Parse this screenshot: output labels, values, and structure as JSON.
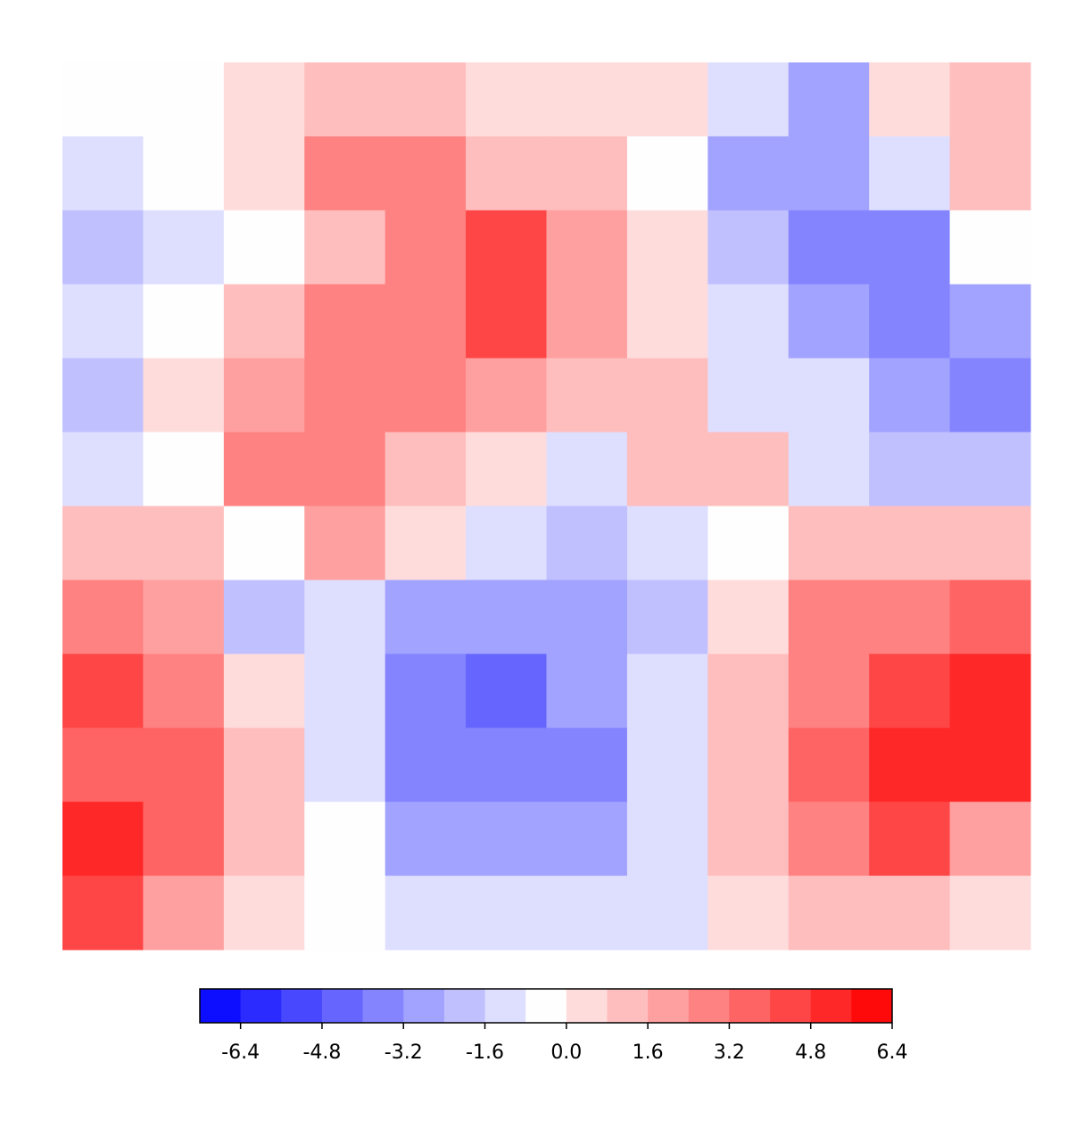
{
  "chart_data": {
    "type": "contourf",
    "colormap": "bwr",
    "levels": [
      -7.2,
      -6.4,
      -5.6,
      -4.8,
      -4.0,
      -3.2,
      -2.4,
      -1.6,
      -0.8,
      0,
      0.8,
      1.6,
      2.4,
      3.2,
      4.0,
      4.8,
      5.6,
      6.4
    ],
    "colors": [
      "#0d0dff",
      "#2b2bff",
      "#4848ff",
      "#6666ff",
      "#8484ff",
      "#a2a2ff",
      "#c0c0ff",
      "#dedeff",
      "#fefefe",
      "#ffdcdc",
      "#ffbebe",
      "#ffa0a0",
      "#ff8282",
      "#ff6464",
      "#ff4646",
      "#ff2828",
      "#ff0a0a"
    ],
    "z": [
      [
        -0.5,
        -0.5,
        0.5,
        1.5,
        1.0,
        0.5,
        0.5,
        0.3,
        -1.5,
        -2.5,
        0.5,
        0.8
      ],
      [
        -1.5,
        -0.8,
        0.5,
        2.5,
        2.5,
        1.5,
        1.2,
        -0.5,
        -2.5,
        -3.0,
        -1.0,
        1.0
      ],
      [
        -2.0,
        -1.0,
        -0.5,
        1.5,
        3.0,
        4.0,
        2.0,
        0.5,
        -2.0,
        -3.5,
        -3.5,
        -0.5
      ],
      [
        -1.5,
        -0.3,
        1.0,
        2.5,
        2.5,
        4.5,
        2.0,
        0.5,
        -1.5,
        -2.5,
        -3.5,
        -3.0
      ],
      [
        -2.0,
        0.5,
        2.0,
        2.5,
        3.0,
        2.0,
        1.0,
        1.5,
        -1.0,
        -1.5,
        -3.0,
        -3.5
      ],
      [
        -1.0,
        -0.5,
        2.5,
        3.0,
        1.0,
        0,
        -1.0,
        1.5,
        1.0,
        -1.0,
        -2.0,
        -2.0
      ],
      [
        1.5,
        1.0,
        -0.5,
        2.0,
        0,
        -1.5,
        -2.0,
        -1.0,
        -0.5,
        1.5,
        1.5,
        1.0
      ],
      [
        3.0,
        2.0,
        -2.0,
        -1.5,
        -2.5,
        -2.5,
        -2.5,
        -2.0,
        0,
        2.5,
        3.0,
        3.5
      ],
      [
        4.0,
        3.0,
        0.5,
        -1.5,
        -4.0,
        -4.5,
        -3.0,
        -1.5,
        1.0,
        3.0,
        4.5,
        5.5
      ],
      [
        3.5,
        3.5,
        1.0,
        -1.0,
        -4.0,
        -4.0,
        -3.5,
        -1.0,
        1.5,
        3.5,
        5.5,
        5.0
      ],
      [
        5.0,
        3.5,
        1.0,
        -0.5,
        -2.5,
        -3.0,
        -2.5,
        -1.5,
        1.0,
        2.5,
        4.0,
        2.0
      ],
      [
        4.0,
        2.0,
        0.5,
        -0.5,
        -1.5,
        -1.5,
        -1.5,
        -1.0,
        0.5,
        1.5,
        1.0,
        0.5
      ]
    ],
    "cbar_ticks": [
      -6.4,
      -4.8,
      -3.2,
      -1.6,
      {
        "value": 0,
        "label": "0.0"
      },
      1.6,
      3.2,
      4.8,
      6.4
    ]
  }
}
